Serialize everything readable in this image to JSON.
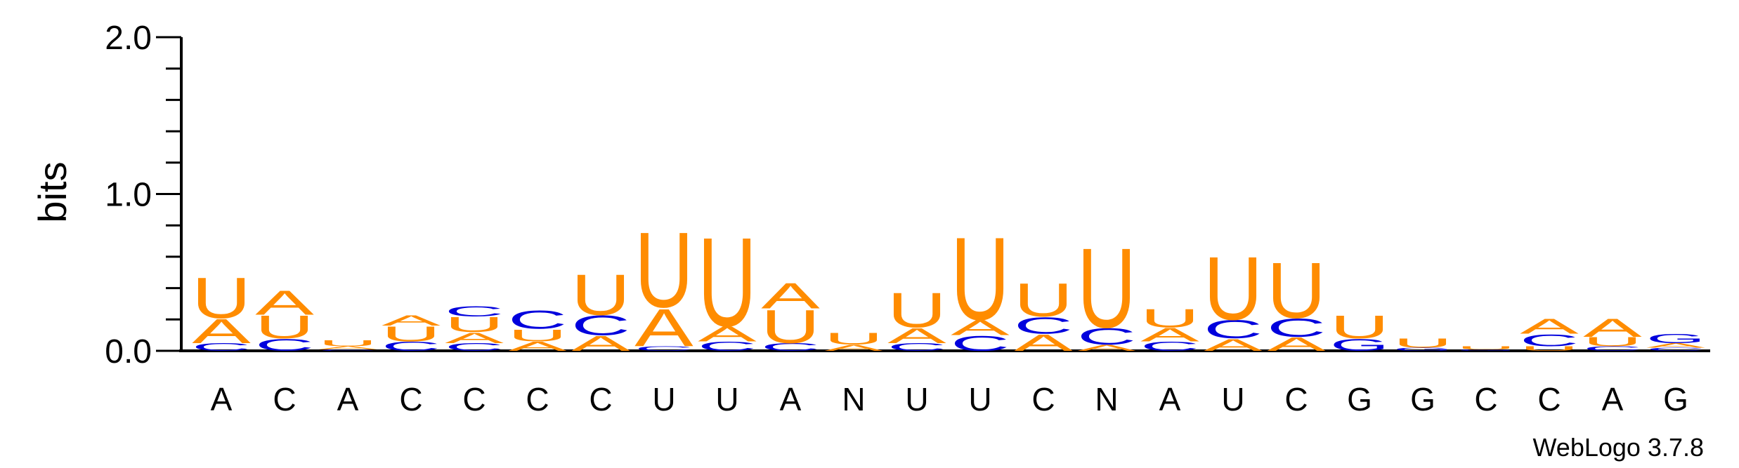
{
  "chart_data": {
    "type": "sequence-logo",
    "ylabel": "bits",
    "ylim": [
      0,
      2.0
    ],
    "yticks": [
      "0.0",
      "1.0",
      "2.0"
    ],
    "categories": [
      "A",
      "C",
      "A",
      "C",
      "C",
      "C",
      "C",
      "U",
      "U",
      "A",
      "N",
      "U",
      "U",
      "C",
      "N",
      "A",
      "U",
      "C",
      "G",
      "G",
      "C",
      "C",
      "A",
      "G"
    ],
    "colors": {
      "A": "#FF8C00",
      "U": "#FF8C00",
      "C": "#0000DD",
      "G": "#0000DD"
    },
    "stacks": [
      [
        {
          "l": "C",
          "v": 0.05
        },
        {
          "l": "A",
          "v": 0.16
        },
        {
          "l": "U",
          "v": 0.27
        }
      ],
      [
        {
          "l": "C",
          "v": 0.08
        },
        {
          "l": "U",
          "v": 0.15
        },
        {
          "l": "A",
          "v": 0.16
        }
      ],
      [
        {
          "l": "C",
          "v": 0.01
        },
        {
          "l": "A",
          "v": 0.02
        },
        {
          "l": "U",
          "v": 0.04
        }
      ],
      [
        {
          "l": "C",
          "v": 0.06
        },
        {
          "l": "U",
          "v": 0.1
        },
        {
          "l": "A",
          "v": 0.07
        }
      ],
      [
        {
          "l": "C",
          "v": 0.05
        },
        {
          "l": "A",
          "v": 0.07
        },
        {
          "l": "U",
          "v": 0.1
        },
        {
          "l": "C",
          "v": 0.07
        }
      ],
      [
        {
          "l": "A",
          "v": 0.06
        },
        {
          "l": "U",
          "v": 0.08
        },
        {
          "l": "C",
          "v": 0.12
        }
      ],
      [
        {
          "l": "A",
          "v": 0.1
        },
        {
          "l": "C",
          "v": 0.13
        },
        {
          "l": "U",
          "v": 0.27
        }
      ],
      [
        {
          "l": "C",
          "v": 0.03
        },
        {
          "l": "A",
          "v": 0.25
        },
        {
          "l": "U",
          "v": 0.5
        }
      ],
      [
        {
          "l": "C",
          "v": 0.06
        },
        {
          "l": "A",
          "v": 0.1
        },
        {
          "l": "U",
          "v": 0.59
        }
      ],
      [
        {
          "l": "C",
          "v": 0.05
        },
        {
          "l": "U",
          "v": 0.22
        },
        {
          "l": "A",
          "v": 0.17
        }
      ],
      [
        {
          "l": "A",
          "v": 0.04
        },
        {
          "l": "U",
          "v": 0.08
        }
      ],
      [
        {
          "l": "C",
          "v": 0.05
        },
        {
          "l": "A",
          "v": 0.1
        },
        {
          "l": "U",
          "v": 0.23
        }
      ],
      [
        {
          "l": "C",
          "v": 0.1
        },
        {
          "l": "A",
          "v": 0.1
        },
        {
          "l": "U",
          "v": 0.55
        }
      ],
      [
        {
          "l": "A",
          "v": 0.11
        },
        {
          "l": "C",
          "v": 0.11
        },
        {
          "l": "U",
          "v": 0.22
        }
      ],
      [
        {
          "l": "A",
          "v": 0.04
        },
        {
          "l": "C",
          "v": 0.11
        },
        {
          "l": "U",
          "v": 0.53
        }
      ],
      [
        {
          "l": "C",
          "v": 0.06
        },
        {
          "l": "A",
          "v": 0.09
        },
        {
          "l": "U",
          "v": 0.12
        }
      ],
      [
        {
          "l": "A",
          "v": 0.08
        },
        {
          "l": "C",
          "v": 0.12
        },
        {
          "l": "U",
          "v": 0.42
        }
      ],
      [
        {
          "l": "A",
          "v": 0.09
        },
        {
          "l": "C",
          "v": 0.12
        },
        {
          "l": "U",
          "v": 0.37
        }
      ],
      [
        {
          "l": "G",
          "v": 0.08
        },
        {
          "l": "U",
          "v": 0.15
        }
      ],
      [
        {
          "l": "G",
          "v": 0.02
        },
        {
          "l": "U",
          "v": 0.06
        }
      ],
      [
        {
          "l": "G",
          "v": 0.01
        },
        {
          "l": "U",
          "v": 0.02
        }
      ],
      [
        {
          "l": "U",
          "v": 0.03
        },
        {
          "l": "C",
          "v": 0.08
        },
        {
          "l": "A",
          "v": 0.1
        }
      ],
      [
        {
          "l": "C",
          "v": 0.03
        },
        {
          "l": "U",
          "v": 0.06
        },
        {
          "l": "A",
          "v": 0.12
        }
      ],
      [
        {
          "l": "C",
          "v": 0.02
        },
        {
          "l": "A",
          "v": 0.03
        },
        {
          "l": "G",
          "v": 0.06
        }
      ]
    ],
    "footer": "WebLogo 3.7.8"
  }
}
